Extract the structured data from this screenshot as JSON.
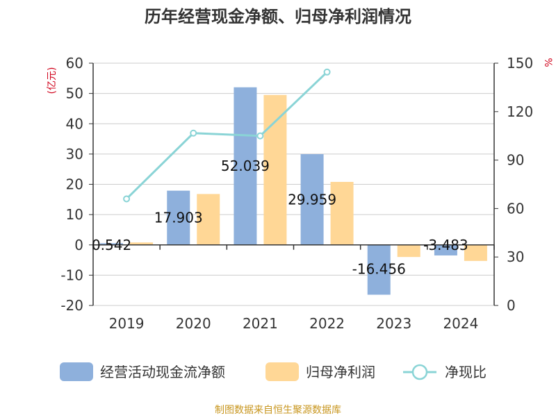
{
  "chart_data": {
    "type": "bar",
    "title": "历年经营现金净额、归母净利润情况",
    "categories": [
      "2019",
      "2020",
      "2021",
      "2022",
      "2023",
      "2024"
    ],
    "y_left": {
      "unit": "(亿元)",
      "min": -20,
      "max": 60,
      "ticks": [
        "60",
        "50",
        "40",
        "30",
        "20",
        "10",
        "0",
        "-10",
        "-20"
      ]
    },
    "y_right": {
      "unit": "%",
      "min": 0,
      "max": 150,
      "ticks": [
        "150",
        "120",
        "90",
        "60",
        "30",
        "0"
      ]
    },
    "series": [
      {
        "name": "经营活动现金流净额",
        "kind": "bar",
        "axis": "left",
        "color": "#8eb0dc",
        "values": [
          0.542,
          17.903,
          52.039,
          29.959,
          -16.456,
          -3.483
        ],
        "labels": [
          "0.542",
          "17.903",
          "52.039",
          "29.959",
          "-16.456",
          "-3.483"
        ]
      },
      {
        "name": "归母净利润",
        "kind": "bar",
        "axis": "left",
        "color": "#ffd796",
        "values": [
          0.8,
          16.8,
          49.5,
          20.8,
          -4.0,
          -5.3
        ]
      },
      {
        "name": "净现比",
        "kind": "line",
        "axis": "right",
        "color": "#8ad4d6",
        "values": [
          66.0,
          106.7,
          105.0,
          144.5,
          null,
          null
        ]
      }
    ],
    "legend_position": "bottom",
    "grid": true
  },
  "source": "制图数据来自恒生聚源数据库"
}
